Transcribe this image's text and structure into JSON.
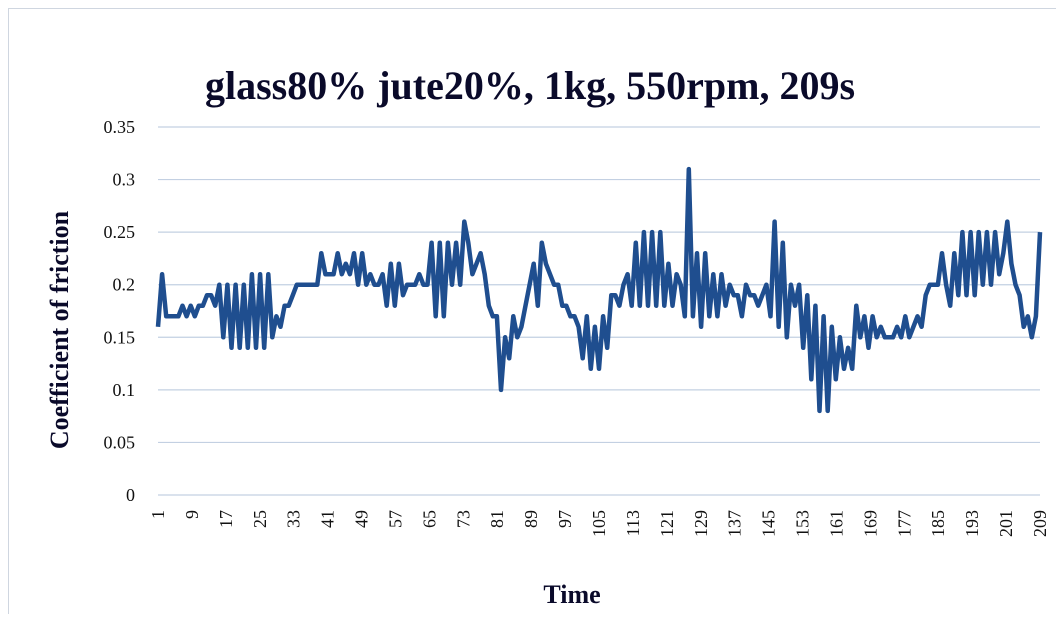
{
  "chart_data": {
    "type": "line",
    "title": "glass80% jute20%, 1kg, 550rpm, 209s",
    "xlabel": "Time",
    "ylabel": "Coefficient of friction",
    "ylim": [
      0,
      0.35
    ],
    "yticks": [
      "0",
      "0.05",
      "0.1",
      "0.15",
      "0.2",
      "0.25",
      "0.3",
      "0.35"
    ],
    "xticks": [
      "1",
      "9",
      "17",
      "25",
      "33",
      "41",
      "49",
      "57",
      "65",
      "73",
      "81",
      "89",
      "97",
      "105",
      "113",
      "121",
      "129",
      "137",
      "145",
      "153",
      "161",
      "169",
      "177",
      "185",
      "193",
      "201",
      "209"
    ],
    "grid": "horizontal",
    "line_color": "#1f4e8f",
    "series": [
      {
        "x_range": [
          1,
          209
        ],
        "values": [
          0.16,
          0.21,
          0.17,
          0.17,
          0.17,
          0.17,
          0.18,
          0.17,
          0.18,
          0.17,
          0.18,
          0.18,
          0.19,
          0.19,
          0.18,
          0.2,
          0.15,
          0.2,
          0.14,
          0.2,
          0.14,
          0.2,
          0.14,
          0.21,
          0.14,
          0.21,
          0.14,
          0.21,
          0.15,
          0.17,
          0.16,
          0.18,
          0.18,
          0.19,
          0.2,
          0.2,
          0.2,
          0.2,
          0.2,
          0.2,
          0.23,
          0.21,
          0.21,
          0.21,
          0.23,
          0.21,
          0.22,
          0.21,
          0.23,
          0.2,
          0.23,
          0.2,
          0.21,
          0.2,
          0.2,
          0.21,
          0.18,
          0.22,
          0.18,
          0.22,
          0.19,
          0.2,
          0.2,
          0.2,
          0.21,
          0.2,
          0.2,
          0.24,
          0.17,
          0.24,
          0.17,
          0.24,
          0.2,
          0.24,
          0.2,
          0.26,
          0.24,
          0.21,
          0.22,
          0.23,
          0.21,
          0.18,
          0.17,
          0.17,
          0.1,
          0.15,
          0.13,
          0.17,
          0.15,
          0.16,
          0.18,
          0.2,
          0.22,
          0.18,
          0.24,
          0.22,
          0.21,
          0.2,
          0.2,
          0.18,
          0.18,
          0.17,
          0.17,
          0.16,
          0.13,
          0.17,
          0.12,
          0.16,
          0.12,
          0.17,
          0.14,
          0.19,
          0.19,
          0.18,
          0.2,
          0.21,
          0.18,
          0.24,
          0.18,
          0.25,
          0.18,
          0.25,
          0.18,
          0.25,
          0.18,
          0.22,
          0.18,
          0.21,
          0.2,
          0.17,
          0.31,
          0.17,
          0.23,
          0.16,
          0.23,
          0.17,
          0.21,
          0.17,
          0.21,
          0.18,
          0.2,
          0.19,
          0.19,
          0.17,
          0.2,
          0.19,
          0.19,
          0.18,
          0.19,
          0.2,
          0.17,
          0.26,
          0.16,
          0.24,
          0.15,
          0.2,
          0.18,
          0.2,
          0.14,
          0.19,
          0.11,
          0.18,
          0.08,
          0.17,
          0.08,
          0.16,
          0.11,
          0.15,
          0.12,
          0.14,
          0.12,
          0.18,
          0.15,
          0.17,
          0.14,
          0.17,
          0.15,
          0.16,
          0.15,
          0.15,
          0.15,
          0.16,
          0.15,
          0.17,
          0.15,
          0.16,
          0.17,
          0.16,
          0.19,
          0.2,
          0.2,
          0.2,
          0.23,
          0.2,
          0.18,
          0.23,
          0.19,
          0.25,
          0.19,
          0.25,
          0.19,
          0.25,
          0.2,
          0.25,
          0.2,
          0.25,
          0.21,
          0.23,
          0.26,
          0.22,
          0.2,
          0.19,
          0.16,
          0.17,
          0.15,
          0.17,
          0.25
        ]
      }
    ]
  }
}
